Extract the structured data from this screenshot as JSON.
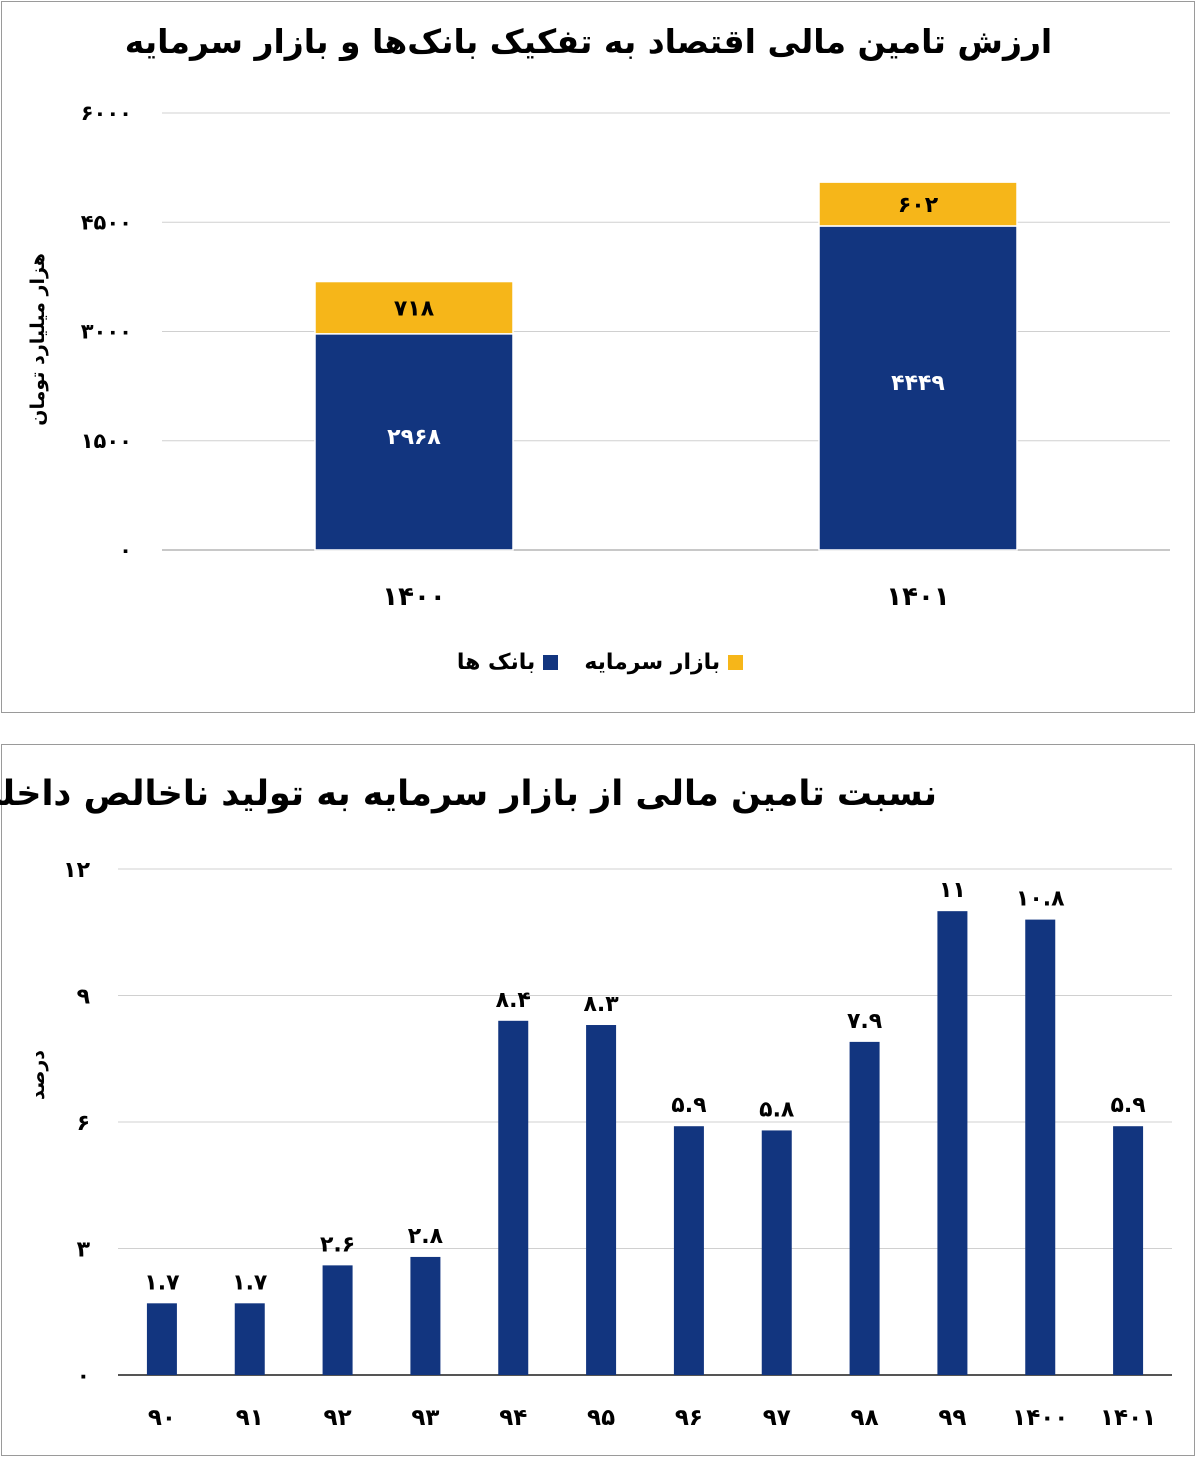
{
  "colors": {
    "banks": "#12357f",
    "capital_market": "#f6b619",
    "grid": "#d0d0d0",
    "axis": "#c8c8c8"
  },
  "chart_data": [
    {
      "type": "bar",
      "stacked": true,
      "title": "ارزش تامین مالی اقتصاد به تفکیک بانک‌ها و بازار سرمایه",
      "ylabel": "هزار میلیارد تومان",
      "ylim": [
        0,
        6000
      ],
      "yticks": [
        "۰",
        "۱۵۰۰",
        "۳۰۰۰",
        "۴۵۰۰",
        "۶۰۰۰"
      ],
      "ytick_values": [
        0,
        1500,
        3000,
        4500,
        6000
      ],
      "categories": [
        "۱۴۰۰",
        "۱۴۰۱"
      ],
      "series": [
        {
          "name": "بانک ها",
          "values": [
            2968,
            4449
          ],
          "labels": [
            "۲۹۶۸",
            "۴۴۴۹"
          ],
          "color": "#12357f"
        },
        {
          "name": "بازار سرمایه",
          "values": [
            718,
            602
          ],
          "labels": [
            "۷۱۸",
            "۶۰۲"
          ],
          "color": "#f6b619"
        }
      ],
      "legend": "bottom",
      "grid": true
    },
    {
      "type": "bar",
      "title": "نسبت تامین مالی از بازار سرمایه به تولید ناخالص داخلی",
      "ylabel": "درصد",
      "ylim": [
        0,
        12
      ],
      "yticks": [
        "۰",
        "۳",
        "۶",
        "۹",
        "۱۲"
      ],
      "ytick_values": [
        0,
        3,
        6,
        9,
        12
      ],
      "categories": [
        "۹۰",
        "۹۱",
        "۹۲",
        "۹۳",
        "۹۴",
        "۹۵",
        "۹۶",
        "۹۷",
        "۹۸",
        "۹۹",
        "۱۴۰۰",
        "۱۴۰۱"
      ],
      "values": [
        1.7,
        1.7,
        2.6,
        2.8,
        8.4,
        8.3,
        5.9,
        5.8,
        7.9,
        11,
        10.8,
        5.9
      ],
      "labels": [
        "۱.۷",
        "۱.۷",
        "۲.۶",
        "۲.۸",
        "۸.۴",
        "۸.۳",
        "۵.۹",
        "۵.۸",
        "۷.۹",
        "۱۱",
        "۱۰.۸",
        "۵.۹"
      ],
      "color": "#12357f",
      "grid": true
    }
  ]
}
